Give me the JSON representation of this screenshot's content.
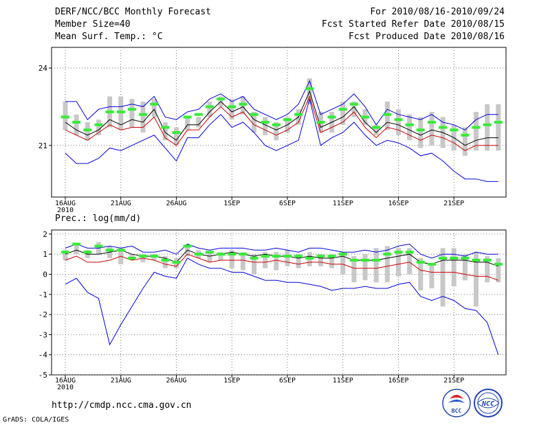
{
  "header": {
    "title": "DERF/NCC/BCC Monthly Forecast",
    "member_size": "Member Size=40",
    "variable": "Mean Surf. Temp.: °C",
    "period": "For 2010/08/16-2010/09/24",
    "started": "Fcst Started Refer Date 2010/08/15",
    "produced": "Fcst Produced Date 2010/08/16"
  },
  "footer": {
    "url": "http://cmdp.ncc.cma.gov.cn",
    "grads": "GrADS: COLA/IGES",
    "logo_bcc": "BCC",
    "logo_ncc": "NCC"
  },
  "colors": {
    "envelope": "#0000dd",
    "median": "#000000",
    "lower_mid": "#cc0000",
    "mean_marker": "#33ee33",
    "bar": "#c8c8c8",
    "grid": "#555555"
  },
  "chart_data": [
    {
      "type": "line",
      "title": "Mean Surf. Temp.: °C",
      "x_tick_labels": [
        "16AUG",
        "21AUG",
        "26AUG",
        "1SEP",
        "6SEP",
        "11SEP",
        "16SEP",
        "21SEP"
      ],
      "x_year_label": "2010",
      "y_ticks": [
        21,
        24
      ],
      "ylim": [
        19.0,
        24.8
      ],
      "days": 40,
      "series": [
        {
          "name": "max",
          "values": [
            22.7,
            22.7,
            22.0,
            22.4,
            22.5,
            22.5,
            22.6,
            22.5,
            22.9,
            22.1,
            22.0,
            22.3,
            22.4,
            22.8,
            23.0,
            22.7,
            22.9,
            22.4,
            22.2,
            22.0,
            22.2,
            22.6,
            23.5,
            22.2,
            22.4,
            22.6,
            23.0,
            22.5,
            21.8,
            22.4,
            22.2,
            22.1,
            22.0,
            22.2,
            21.9,
            21.8,
            21.6,
            22.0,
            22.2,
            22.2
          ]
        },
        {
          "name": "median",
          "values": [
            21.9,
            21.6,
            21.4,
            21.6,
            22.0,
            21.8,
            22.0,
            21.9,
            22.4,
            21.5,
            21.2,
            21.8,
            21.8,
            22.3,
            22.7,
            22.3,
            22.5,
            22.0,
            21.8,
            21.6,
            21.8,
            22.1,
            23.1,
            21.7,
            21.9,
            22.1,
            22.5,
            21.9,
            21.5,
            21.9,
            21.8,
            21.6,
            21.4,
            21.6,
            21.5,
            21.3,
            21.0,
            21.2,
            21.3,
            21.3
          ]
        },
        {
          "name": "lower_mid",
          "values": [
            21.6,
            21.4,
            21.2,
            21.5,
            21.8,
            21.6,
            21.7,
            21.7,
            22.1,
            21.3,
            21.0,
            21.6,
            21.6,
            22.1,
            22.5,
            22.1,
            22.3,
            21.8,
            21.6,
            21.4,
            21.6,
            21.9,
            22.9,
            21.5,
            21.7,
            21.9,
            22.3,
            21.7,
            21.3,
            21.7,
            21.6,
            21.4,
            21.2,
            21.4,
            21.3,
            21.1,
            20.8,
            21.0,
            21.0,
            21.0
          ]
        },
        {
          "name": "min",
          "values": [
            20.7,
            20.3,
            20.3,
            20.5,
            20.9,
            20.8,
            21.0,
            21.2,
            21.4,
            20.9,
            20.4,
            21.3,
            21.3,
            21.8,
            22.2,
            21.7,
            21.9,
            21.5,
            21.0,
            20.8,
            21.0,
            21.2,
            22.8,
            21.0,
            21.3,
            21.5,
            21.9,
            21.4,
            21.0,
            21.2,
            21.1,
            20.9,
            20.6,
            20.7,
            20.4,
            20.0,
            19.7,
            19.7,
            19.6,
            19.6
          ]
        },
        {
          "name": "mean",
          "values": [
            22.1,
            21.9,
            21.6,
            21.8,
            22.3,
            22.3,
            22.4,
            22.2,
            22.6,
            21.7,
            21.5,
            22.1,
            22.2,
            22.5,
            22.8,
            22.5,
            22.6,
            22.2,
            21.9,
            21.8,
            22.0,
            22.2,
            23.2,
            21.9,
            22.1,
            22.4,
            22.6,
            22.1,
            21.7,
            22.2,
            22.0,
            21.8,
            21.6,
            21.9,
            21.7,
            21.6,
            21.4,
            21.7,
            21.8,
            21.9
          ]
        }
      ],
      "bars": [
        [
          21.6,
          22.7
        ],
        [
          21.4,
          22.2
        ],
        [
          21.2,
          21.9
        ],
        [
          21.4,
          22.0
        ],
        [
          21.7,
          22.9
        ],
        [
          21.6,
          22.9
        ],
        [
          21.7,
          22.8
        ],
        [
          21.5,
          22.7
        ],
        [
          22.1,
          22.8
        ],
        [
          21.2,
          21.9
        ],
        [
          21.0,
          21.7
        ],
        [
          21.6,
          22.1
        ],
        [
          21.7,
          22.1
        ],
        [
          22.1,
          22.7
        ],
        [
          22.5,
          22.9
        ],
        [
          22.0,
          22.8
        ],
        [
          22.2,
          22.9
        ],
        [
          21.5,
          22.3
        ],
        [
          21.4,
          22.1
        ],
        [
          21.2,
          21.9
        ],
        [
          21.5,
          22.1
        ],
        [
          21.8,
          22.4
        ],
        [
          22.6,
          23.6
        ],
        [
          21.5,
          22.3
        ],
        [
          21.5,
          22.3
        ],
        [
          21.8,
          22.7
        ],
        [
          22.1,
          22.7
        ],
        [
          21.8,
          22.4
        ],
        [
          21.4,
          21.8
        ],
        [
          21.6,
          22.7
        ],
        [
          21.4,
          22.4
        ],
        [
          21.2,
          22.2
        ],
        [
          20.9,
          22.1
        ],
        [
          21.0,
          22.3
        ],
        [
          20.9,
          22.1
        ],
        [
          20.8,
          21.8
        ],
        [
          20.6,
          21.7
        ],
        [
          20.8,
          22.3
        ],
        [
          20.8,
          22.6
        ],
        [
          20.8,
          22.6
        ]
      ]
    },
    {
      "type": "line",
      "title": "Prec.: log(mm/d)",
      "x_tick_labels": [
        "16AUG",
        "21AUG",
        "26AUG",
        "1SEP",
        "6SEP",
        "11SEP",
        "16SEP",
        "21SEP"
      ],
      "x_year_label": "2010",
      "y_ticks": [
        -5,
        -4,
        -3,
        -2,
        -1,
        0,
        1,
        2
      ],
      "ylim": [
        -5,
        2.2
      ],
      "days": 40,
      "series": [
        {
          "name": "max",
          "values": [
            1.3,
            1.5,
            1.3,
            1.3,
            1.4,
            1.3,
            1.4,
            1.1,
            1.1,
            1.2,
            1.0,
            1.5,
            1.3,
            1.2,
            1.3,
            1.3,
            1.3,
            1.2,
            1.2,
            1.3,
            1.2,
            1.1,
            1.3,
            1.3,
            1.2,
            1.1,
            1.1,
            1.2,
            1.1,
            1.2,
            1.4,
            1.5,
            1.0,
            0.8,
            1.0,
            1.0,
            0.9,
            1.1,
            1.0,
            1.0
          ]
        },
        {
          "name": "median",
          "values": [
            1.0,
            1.2,
            1.0,
            1.0,
            1.1,
            1.2,
            1.0,
            0.9,
            0.9,
            0.8,
            0.6,
            1.2,
            1.0,
            0.9,
            1.0,
            1.1,
            1.0,
            0.9,
            1.0,
            0.9,
            0.9,
            0.8,
            0.9,
            0.8,
            0.8,
            0.9,
            0.7,
            0.7,
            0.7,
            0.8,
            0.9,
            1.0,
            0.6,
            0.5,
            0.7,
            0.7,
            0.7,
            0.6,
            0.6,
            0.4
          ]
        },
        {
          "name": "lower_mid",
          "values": [
            0.7,
            0.9,
            0.6,
            0.6,
            0.7,
            0.9,
            0.7,
            0.8,
            0.7,
            0.5,
            0.4,
            1.0,
            0.8,
            0.6,
            0.7,
            0.7,
            0.7,
            0.6,
            0.6,
            0.7,
            0.6,
            0.5,
            0.6,
            0.6,
            0.5,
            0.5,
            0.3,
            0.3,
            0.3,
            0.4,
            0.5,
            0.6,
            0.2,
            0.1,
            0.1,
            0.1,
            0.0,
            -0.1,
            -0.1,
            -0.3
          ]
        },
        {
          "name": "min",
          "values": [
            -0.5,
            -0.2,
            -0.9,
            -1.2,
            -3.5,
            -2.5,
            -1.6,
            -0.7,
            0.1,
            -0.1,
            -0.2,
            0.8,
            0.5,
            0.3,
            0.3,
            0.1,
            0.1,
            -0.1,
            -0.3,
            -0.3,
            -0.4,
            -0.4,
            -0.5,
            -0.6,
            -0.8,
            -0.7,
            -0.7,
            -0.6,
            -0.7,
            -0.7,
            -0.5,
            -0.4,
            -1.1,
            -1.3,
            -1.1,
            -1.3,
            -1.7,
            -1.8,
            -2.4,
            -4.0
          ]
        },
        {
          "name": "mean",
          "values": [
            1.1,
            1.5,
            1.1,
            1.4,
            1.2,
            1.2,
            0.8,
            0.9,
            0.9,
            0.7,
            0.6,
            1.4,
            1.0,
            1.1,
            1.0,
            1.0,
            1.0,
            0.8,
            0.9,
            0.9,
            0.9,
            0.9,
            0.8,
            0.9,
            0.9,
            1.0,
            0.7,
            0.7,
            0.7,
            1.0,
            1.1,
            1.1,
            0.6,
            0.5,
            0.8,
            0.8,
            0.8,
            0.7,
            0.7,
            0.5
          ]
        }
      ],
      "bars": [
        [
          0.7,
          1.2
        ],
        [
          1.0,
          1.5
        ],
        [
          0.8,
          1.2
        ],
        [
          1.0,
          1.6
        ],
        [
          0.8,
          1.4
        ],
        [
          0.5,
          1.3
        ],
        [
          0.7,
          1.0
        ],
        [
          0.6,
          1.0
        ],
        [
          0.7,
          1.0
        ],
        [
          0.3,
          0.9
        ],
        [
          0.3,
          0.8
        ],
        [
          0.9,
          1.5
        ],
        [
          0.8,
          1.2
        ],
        [
          0.6,
          1.1
        ],
        [
          0.7,
          1.1
        ],
        [
          0.3,
          1.2
        ],
        [
          0.2,
          1.1
        ],
        [
          0.0,
          1.0
        ],
        [
          0.3,
          1.1
        ],
        [
          0.2,
          1.1
        ],
        [
          0.4,
          1.2
        ],
        [
          0.3,
          1.0
        ],
        [
          0.4,
          1.1
        ],
        [
          0.4,
          1.0
        ],
        [
          0.3,
          1.0
        ],
        [
          0.0,
          1.1
        ],
        [
          -0.4,
          0.9
        ],
        [
          -0.3,
          1.0
        ],
        [
          -0.4,
          1.3
        ],
        [
          -0.4,
          1.4
        ],
        [
          -0.1,
          1.3
        ],
        [
          0.0,
          1.3
        ],
        [
          -0.8,
          0.8
        ],
        [
          -0.7,
          0.5
        ],
        [
          -1.6,
          1.3
        ],
        [
          -0.6,
          1.3
        ],
        [
          -0.3,
          1.0
        ],
        [
          -1.6,
          1.1
        ],
        [
          -0.4,
          0.9
        ],
        [
          -0.4,
          0.8
        ]
      ]
    }
  ]
}
